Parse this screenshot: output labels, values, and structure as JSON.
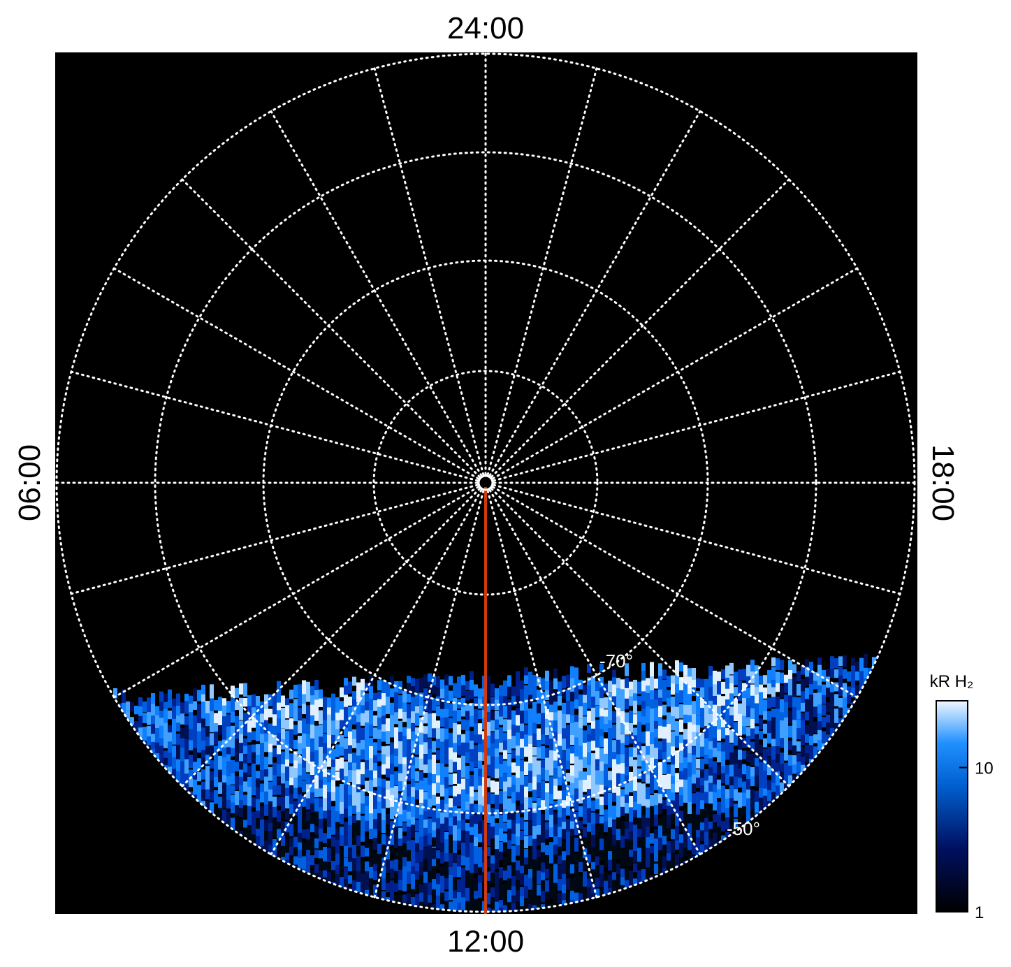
{
  "time_labels": {
    "top": "24:00",
    "bottom": "12:00",
    "left": "06:00",
    "right": "18:00"
  },
  "latitude_labels": [
    "-70°",
    "-50°"
  ],
  "colorbar": {
    "label": "kR H₂",
    "range": [
      1,
      29
    ],
    "ticks": [
      1,
      10
    ],
    "log": true
  }
}
